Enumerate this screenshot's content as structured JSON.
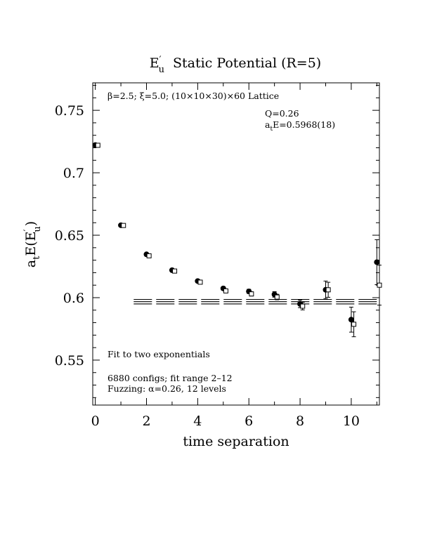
{
  "chart_data": {
    "type": "scatter",
    "title_main": "E",
    "title_sub": "u",
    "title_prime": "′",
    "title_rest": "Static Potential (R=5)",
    "xlabel": "time separation",
    "ylabel_a": "a",
    "ylabel_t": "t",
    "ylabel_E": "E(E",
    "ylabel_prime": "′",
    "ylabel_u": "u",
    "ylabel_close": ")",
    "xlim": [
      -0.1,
      11.1
    ],
    "ylim": [
      0.514,
      0.772
    ],
    "xticks": [
      0,
      2,
      4,
      6,
      8,
      10
    ],
    "xtick_labels": [
      "0",
      "2",
      "4",
      "6",
      "8",
      "10"
    ],
    "yticks": [
      0.55,
      0.6,
      0.65,
      0.7,
      0.75
    ],
    "ytick_labels": [
      "0.55",
      "0.6",
      "0.65",
      "0.7",
      "0.75"
    ],
    "annotations": {
      "lattice": "β=2.5; ξ=5.0; (10×10×30)×60 Lattice",
      "q": "Q=0.26",
      "energy_a": "a",
      "energy_t": "t",
      "energy_rest": "E=0.5968(18)",
      "fit": "Fit to two exponentials",
      "configs": "6880 configs; fit range 2–12",
      "fuzzing": "Fuzzing: α=0.26, 12 levels"
    },
    "series": [
      {
        "marker": "filled-circle",
        "x": [
          0,
          1,
          2,
          3,
          4,
          5,
          6,
          7,
          8,
          9,
          10,
          11
        ],
        "y": [
          0.7222,
          0.658,
          0.6347,
          0.622,
          0.6133,
          0.6074,
          0.605,
          0.6026,
          0.595,
          0.6063,
          0.5824,
          0.6284
        ],
        "err": [
          0.0005,
          0.0006,
          0.0008,
          0.0009,
          0.0012,
          0.0014,
          0.0017,
          0.0022,
          0.003,
          0.007,
          0.01,
          0.018
        ]
      },
      {
        "marker": "open-square",
        "x": [
          0.1,
          1.1,
          2.1,
          3.1,
          4.1,
          5.1,
          6.1,
          7.1,
          8.1,
          9.1,
          10.1,
          11.1
        ],
        "y": [
          0.722,
          0.6578,
          0.6335,
          0.6213,
          0.6124,
          0.6054,
          0.603,
          0.6005,
          0.5932,
          0.6063,
          0.5787,
          0.61
        ],
        "err": [
          0.0005,
          0.0006,
          0.0008,
          0.0009,
          0.0012,
          0.0014,
          0.0017,
          0.0022,
          0.003,
          0.006,
          0.01,
          0.016
        ]
      }
    ],
    "fit": {
      "x_range": [
        1.5,
        11.1
      ],
      "value": 0.5968,
      "error": 0.0018
    }
  }
}
